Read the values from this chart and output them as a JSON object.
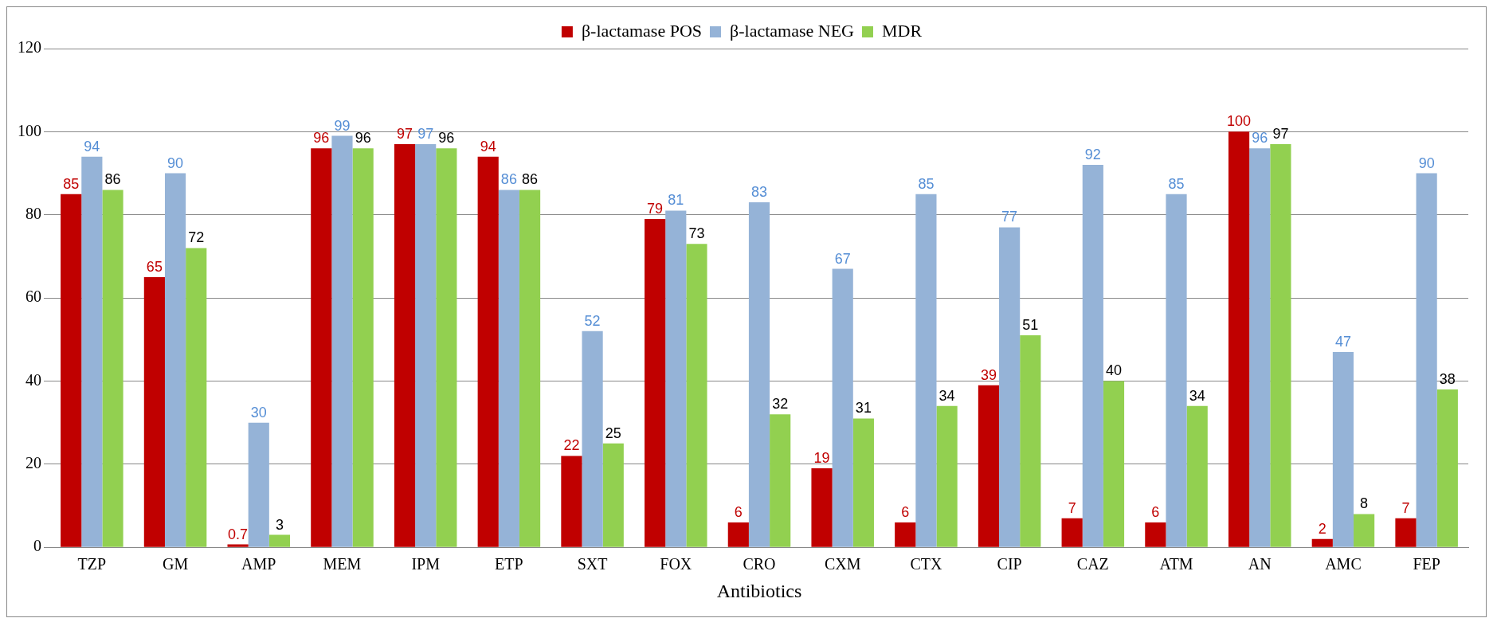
{
  "chart_data": {
    "type": "bar",
    "xlabel": "Antibiotics",
    "categories": [
      "TZP",
      "GM",
      "AMP",
      "MEM",
      "IPM",
      "ETP",
      "SXT",
      "FOX",
      "CRO",
      "CXM",
      "CTX",
      "CIP",
      "CAZ",
      "ATM",
      "AN",
      "AMC",
      "FEP"
    ],
    "series": [
      {
        "name": "β-lactamase POS",
        "color": "#c00000",
        "values": [
          85,
          65,
          0.7,
          96,
          97,
          94,
          22,
          79,
          6,
          19,
          6,
          39,
          7,
          6,
          100,
          2,
          7
        ]
      },
      {
        "name": "β-lactamase NEG",
        "color": "#95b3d7",
        "values": [
          94,
          90,
          30,
          99,
          97,
          86,
          52,
          81,
          83,
          67,
          85,
          77,
          92,
          85,
          96,
          47,
          90
        ]
      },
      {
        "name": "MDR",
        "color": "#92d050",
        "values": [
          86,
          72,
          3,
          96,
          96,
          86,
          25,
          73,
          32,
          31,
          34,
          51,
          40,
          34,
          97,
          8,
          38
        ]
      }
    ],
    "ylim": [
      0,
      120
    ],
    "yticks": [
      0,
      20,
      40,
      60,
      80,
      100,
      120
    ],
    "grid": "y",
    "legend": "top",
    "data_labels": true
  }
}
